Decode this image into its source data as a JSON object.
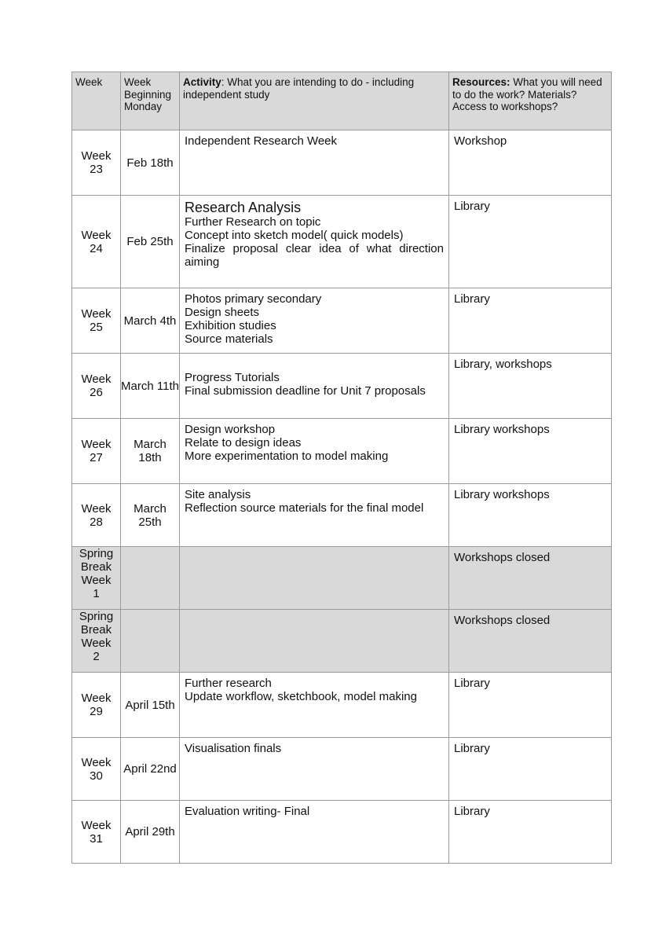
{
  "header": {
    "week": "Week",
    "week_beginning": "Week Beginning Monday",
    "activity_bold": "Activity",
    "activity_rest": ": What you are intending to do - including independent study",
    "resources_bold": "Resources:",
    "resources_rest": " What you will need to do the work? Materials? Access to workshops?"
  },
  "rows": [
    {
      "week": "Week 23",
      "date": "Feb 18th",
      "activity": [
        "Independent Research Week"
      ],
      "resources": "Workshop"
    },
    {
      "week": "Week 24",
      "date": "Feb 25th",
      "activity": [
        "Research Analysis",
        "Further Research on topic",
        "Concept into sketch model( quick models)",
        "Finalize proposal clear idea of what direction aiming"
      ],
      "resources": "Library"
    },
    {
      "week": "Week 25",
      "date": "March 4th",
      "activity": [
        "Photos primary secondary",
        "Design sheets",
        "Exhibition studies",
        "Source materials"
      ],
      "resources": "Library"
    },
    {
      "week": "Week 26",
      "date": "March 11th",
      "activity": [
        "Progress Tutorials",
        "Final submission deadline for Unit 7 proposals"
      ],
      "resources": "Library, workshops"
    },
    {
      "week": "Week 27",
      "date": "March 18th",
      "activity": [
        "Design workshop",
        "Relate to design ideas",
        "More experimentation to model making"
      ],
      "resources": "Library workshops"
    },
    {
      "week": "Week 28",
      "date": "March 25th",
      "activity": [
        "Site analysis",
        "Reflection source materials for the final model"
      ],
      "resources": "Library  workshops"
    },
    {
      "week": "Spring Break Week 1",
      "date": "",
      "activity": [],
      "resources": "Workshops closed",
      "shaded": true
    },
    {
      "week": "Spring Break Week 2",
      "date": "",
      "activity": [],
      "resources": "Workshops closed",
      "shaded": true
    },
    {
      "week": "Week 29",
      "date": "April 15th",
      "activity": [
        "Further research",
        "Update workflow, sketchbook, model making"
      ],
      "resources": "Library"
    },
    {
      "week": "Week 30",
      "date": "April 22nd",
      "activity": [
        "Visualisation finals"
      ],
      "resources": "Library"
    },
    {
      "week": "Week 31",
      "date": "April 29th",
      "activity": [
        "Evaluation writing- Final"
      ],
      "resources": "Library"
    }
  ]
}
